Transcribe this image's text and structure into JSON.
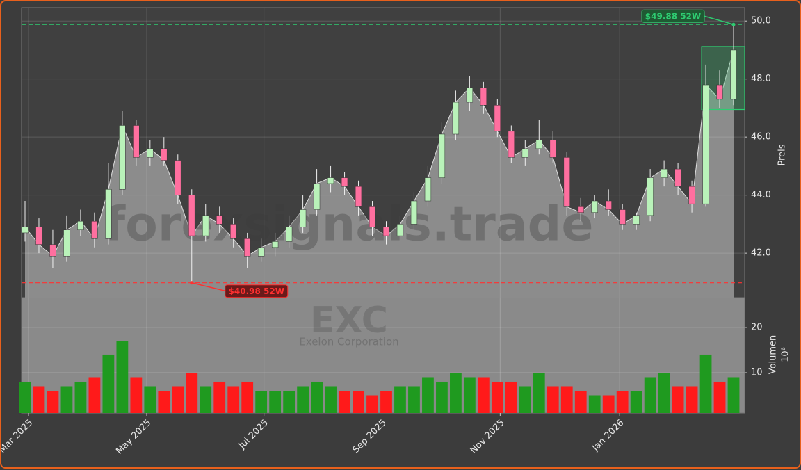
{
  "chart_data": {
    "type": "candlestick",
    "ylabel": "Preis",
    "volume_label": "Volumen",
    "volume_offset_label": "10⁶",
    "watermark": "forexsignals.trade",
    "ticker": "EXC",
    "company": "Exelon Corporation",
    "categories": [
      null,
      null,
      null,
      null,
      null,
      null,
      null,
      null,
      null,
      null,
      null,
      null,
      null,
      null,
      null,
      null,
      null,
      null,
      null,
      null,
      null,
      null,
      null,
      null,
      null,
      null,
      null,
      null,
      null,
      null,
      null,
      null,
      null,
      null,
      null,
      null,
      null,
      null,
      null,
      null,
      null,
      null,
      null,
      null,
      null,
      null,
      null,
      null,
      null,
      null,
      null,
      null
    ],
    "open": [
      42.7,
      42.9,
      42.3,
      41.9,
      42.8,
      43.1,
      42.5,
      44.2,
      46.4,
      45.3,
      45.6,
      45.2,
      44.0,
      42.6,
      43.3,
      43.0,
      42.5,
      41.9,
      42.2,
      42.4,
      42.9,
      43.5,
      44.4,
      44.6,
      44.3,
      43.6,
      42.9,
      42.6,
      43.0,
      43.8,
      44.6,
      46.1,
      47.2,
      47.7,
      47.1,
      46.2,
      45.3,
      45.6,
      45.9,
      45.3,
      43.6,
      43.4,
      43.8,
      43.5,
      43.0,
      43.3,
      44.6,
      44.9,
      44.3,
      43.7,
      47.8,
      47.3
    ],
    "high": [
      43.8,
      43.2,
      42.8,
      43.3,
      43.5,
      43.4,
      45.1,
      46.9,
      46.6,
      45.9,
      46.0,
      45.4,
      44.2,
      43.7,
      43.6,
      43.2,
      42.7,
      42.5,
      42.7,
      43.3,
      44.0,
      44.9,
      45.0,
      44.8,
      44.5,
      43.8,
      43.1,
      43.3,
      44.1,
      45.0,
      46.5,
      47.6,
      48.1,
      47.9,
      47.3,
      46.4,
      45.9,
      46.6,
      46.2,
      45.5,
      43.9,
      44.0,
      44.2,
      43.7,
      43.4,
      44.9,
      45.2,
      45.1,
      44.5,
      48.5,
      48.3,
      49.88
    ],
    "low": [
      42.4,
      42.0,
      41.5,
      41.7,
      42.6,
      42.2,
      42.3,
      44.0,
      45.0,
      45.0,
      45.0,
      43.7,
      40.98,
      42.4,
      42.7,
      42.2,
      41.5,
      41.7,
      41.9,
      42.2,
      42.7,
      43.3,
      44.1,
      44.0,
      43.3,
      42.6,
      42.3,
      42.4,
      42.8,
      43.6,
      44.4,
      45.9,
      46.9,
      46.8,
      46.0,
      45.1,
      45.0,
      45.4,
      45.1,
      43.3,
      43.1,
      43.2,
      43.3,
      42.8,
      42.8,
      43.1,
      44.3,
      44.0,
      43.4,
      43.6,
      47.0,
      47.1
    ],
    "close": [
      42.9,
      42.3,
      41.9,
      42.8,
      43.1,
      42.5,
      44.2,
      46.4,
      45.3,
      45.6,
      45.2,
      44.0,
      42.6,
      43.3,
      43.0,
      42.5,
      41.9,
      42.2,
      42.4,
      42.9,
      43.5,
      44.4,
      44.6,
      44.3,
      43.6,
      42.9,
      42.6,
      43.0,
      43.8,
      44.6,
      46.1,
      47.2,
      47.7,
      47.1,
      46.2,
      45.3,
      45.6,
      45.9,
      45.3,
      43.6,
      43.4,
      43.8,
      43.5,
      43.0,
      43.3,
      44.6,
      44.9,
      44.3,
      43.7,
      47.8,
      47.3,
      49.0
    ],
    "volume": [
      8,
      7,
      6,
      7,
      8,
      9,
      14,
      17,
      9,
      7,
      6,
      7,
      10,
      7,
      8,
      7,
      8,
      6,
      6,
      6,
      7,
      8,
      7,
      6,
      6,
      5,
      6,
      7,
      7,
      9,
      8,
      10,
      9,
      9,
      8,
      8,
      7,
      10,
      7,
      7,
      6,
      5,
      5,
      6,
      6,
      9,
      10,
      7,
      7,
      14,
      8,
      9
    ],
    "up_color": "#1f9a1f",
    "down_color": "#ff1a1a",
    "candle_up_color": "#b9f2b9",
    "candle_down_color": "#ff6f9f",
    "xlim": [
      -0.25,
      51.8
    ],
    "xticks": [
      {
        "value": 0.25,
        "label": "Mar 2025"
      },
      {
        "value": 8.76,
        "label": "May 2025"
      },
      {
        "value": 17.2,
        "label": "Jul 2025"
      },
      {
        "value": 25.7,
        "label": "Sep 2025"
      },
      {
        "value": 34.2,
        "label": "Nov 2025"
      },
      {
        "value": 42.8,
        "label": "Jan 2026"
      }
    ],
    "ylim": [
      40.47,
      50.46
    ],
    "yticks": [
      {
        "value": 42,
        "label": "42.0"
      },
      {
        "value": 44,
        "label": "44.0"
      },
      {
        "value": 46,
        "label": "46.0"
      },
      {
        "value": 48,
        "label": "48.0"
      },
      {
        "value": 50,
        "label": "50.0"
      }
    ],
    "volume_lim": [
      1.08,
      26.6
    ],
    "volume_ticks": [
      10,
      20
    ],
    "grid": true,
    "annotations": [
      {
        "text": "$49.88 52W",
        "value": 49.88,
        "x": 51,
        "color": "#2ecc71"
      },
      {
        "text": "$40.98 52W",
        "value": 40.98,
        "x": 12,
        "color": "#ff3030"
      }
    ],
    "highlight_zone": {
      "x": [
        48.7,
        51.8
      ],
      "y": [
        46.95,
        49.12
      ],
      "color": "#2ecc71"
    }
  }
}
